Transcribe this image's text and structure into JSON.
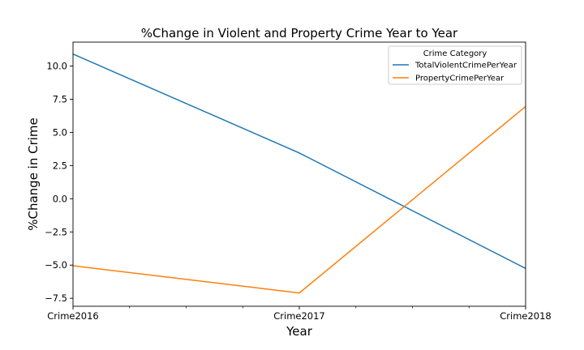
{
  "chart_data": {
    "type": "line",
    "title": "%Change in Violent and Property Crime Year to Year",
    "xlabel": "Year",
    "ylabel": "%Change in Crime",
    "categories": [
      "Crime2016",
      "Crime2017",
      "Crime2018"
    ],
    "series": [
      {
        "name": "TotalViolentCrimePerYear",
        "color": "#1f77b4",
        "values": [
          10.9,
          3.45,
          -5.25
        ]
      },
      {
        "name": "PropertyCrimePerYear",
        "color": "#ff7f0e",
        "values": [
          -5.05,
          -7.1,
          6.95
        ]
      }
    ],
    "ylim": [
      -8.1,
      11.8
    ],
    "yticks": [
      10.0,
      7.5,
      5.0,
      2.5,
      0.0,
      -2.5,
      -5.0,
      -7.5
    ],
    "ytick_labels": [
      "10.0",
      "7.5",
      "5.0",
      "2.5",
      "0.0",
      "−2.5",
      "−5.0",
      "−7.5"
    ],
    "minor_xticks": [
      0.25,
      0.5,
      0.75,
      1.25,
      1.5,
      1.75
    ],
    "legend": {
      "title": "Crime Category",
      "placement": "top-right"
    },
    "grid": false
  }
}
